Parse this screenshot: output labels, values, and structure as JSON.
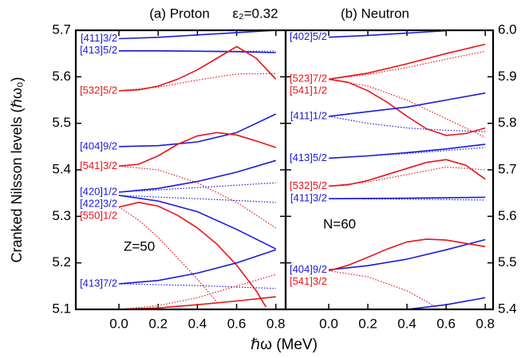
{
  "figure": {
    "note": "ε₂=0.32",
    "xlabel": "ℏω (MeV)"
  },
  "chart_data": [
    {
      "type": "line",
      "title": "(a) Proton",
      "ylabel": "Cranked Nilsson levels (ℏω₀)",
      "annotation": "Z=50",
      "xlim": [
        -0.22,
        0.85
      ],
      "ylim": [
        5.1,
        5.7
      ],
      "xticks": [
        {
          "value": 0,
          "label": "0.0"
        },
        0.2,
        0.4,
        0.6,
        0.8
      ],
      "yticks": [
        5.1,
        5.2,
        5.3,
        5.4,
        5.5,
        5.6,
        5.7
      ],
      "series": [
        {
          "name": "[411]3/2",
          "color": "#1a1adb",
          "dash": "solid",
          "x": [
            0,
            0.2,
            0.4,
            0.6,
            0.8
          ],
          "values": [
            5.682,
            5.685,
            5.69,
            5.695,
            5.7
          ]
        },
        {
          "name": "[413]5/2",
          "color": "#1a1adb",
          "dash": "solid",
          "x": [
            0,
            0.2,
            0.4,
            0.6,
            0.8
          ],
          "values": [
            5.656,
            5.656,
            5.655,
            5.654,
            5.652
          ]
        },
        {
          "color": "#1a1adb",
          "dash": "dotted",
          "x": [
            0,
            0.4,
            0.8
          ],
          "values": [
            5.655,
            5.655,
            5.655
          ]
        },
        {
          "name": "[532]5/2",
          "color": "#e8131a",
          "dash": "solid",
          "x": [
            0,
            0.1,
            0.2,
            0.3,
            0.4,
            0.5,
            0.6,
            0.7,
            0.8
          ],
          "values": [
            5.57,
            5.572,
            5.58,
            5.595,
            5.615,
            5.64,
            5.665,
            5.64,
            5.595
          ]
        },
        {
          "color": "#e8131a",
          "dash": "dotted",
          "x": [
            0,
            0.2,
            0.4,
            0.6,
            0.8
          ],
          "values": [
            5.57,
            5.578,
            5.593,
            5.606,
            5.607
          ]
        },
        {
          "name": "[404]9/2",
          "color": "#1a1adb",
          "dash": "solid",
          "x": [
            0,
            0.2,
            0.4,
            0.6,
            0.8
          ],
          "values": [
            5.45,
            5.452,
            5.46,
            5.48,
            5.52
          ]
        },
        {
          "name": "[541]3/2",
          "color": "#e8131a",
          "dash": "solid",
          "x": [
            0,
            0.1,
            0.2,
            0.3,
            0.4,
            0.5,
            0.6,
            0.7,
            0.8
          ],
          "values": [
            5.408,
            5.412,
            5.43,
            5.455,
            5.473,
            5.48,
            5.475,
            5.462,
            5.448
          ]
        },
        {
          "color": "#e8131a",
          "dash": "dotted",
          "x": [
            0,
            0.2,
            0.4,
            0.6,
            0.8
          ],
          "values": [
            5.408,
            5.4,
            5.372,
            5.33,
            5.275
          ]
        },
        {
          "name": "[420]1/2",
          "color": "#1a1adb",
          "dash": "solid",
          "x": [
            0,
            0.2,
            0.4,
            0.6,
            0.8
          ],
          "values": [
            5.352,
            5.36,
            5.375,
            5.395,
            5.42
          ]
        },
        {
          "color": "#1a1adb",
          "dash": "dotted",
          "x": [
            0,
            0.4,
            0.8
          ],
          "values": [
            5.352,
            5.362,
            5.372
          ]
        },
        {
          "name": "[422]3/2",
          "color": "#1a1adb",
          "dash": "solid",
          "x": [
            0,
            0.2,
            0.4,
            0.6,
            0.8
          ],
          "values": [
            5.345,
            5.333,
            5.31,
            5.272,
            5.23
          ]
        },
        {
          "color": "#1a1adb",
          "dash": "dotted",
          "x": [
            0,
            0.4,
            0.8
          ],
          "values": [
            5.345,
            5.338,
            5.33
          ]
        },
        {
          "name": "[550]1/2",
          "color": "#e8131a",
          "dash": "solid",
          "x": [
            0,
            0.1,
            0.2,
            0.3,
            0.4,
            0.5,
            0.6,
            0.7,
            0.75
          ],
          "values": [
            5.32,
            5.33,
            5.322,
            5.302,
            5.275,
            5.24,
            5.195,
            5.14,
            5.105
          ]
        },
        {
          "color": "#e8131a",
          "dash": "dotted",
          "x": [
            0,
            0.1,
            0.2,
            0.3,
            0.4,
            0.5
          ],
          "values": [
            5.32,
            5.292,
            5.255,
            5.21,
            5.165,
            5.115
          ]
        },
        {
          "name": "[413]7/2",
          "color": "#1a1adb",
          "dash": "solid",
          "x": [
            0,
            0.2,
            0.4,
            0.6,
            0.8
          ],
          "values": [
            5.155,
            5.162,
            5.178,
            5.2,
            5.228
          ]
        },
        {
          "color": "#1a1adb",
          "dash": "dotted",
          "x": [
            0,
            0.4,
            0.8
          ],
          "values": [
            5.155,
            5.151,
            5.145
          ]
        },
        {
          "color": "#e8131a",
          "dash": "solid",
          "x": [
            0,
            0.2,
            0.4,
            0.6,
            0.8
          ],
          "values": [
            5.1,
            5.103,
            5.11,
            5.118,
            5.127
          ]
        },
        {
          "color": "#e8131a",
          "dash": "dotted",
          "x": [
            0,
            0.2,
            0.4,
            0.6,
            0.8
          ],
          "values": [
            5.1,
            5.108,
            5.125,
            5.15,
            5.175
          ]
        }
      ]
    },
    {
      "type": "line",
      "title": "(b) Neutron",
      "annotation": "N=60",
      "xlim": [
        -0.22,
        0.84
      ],
      "ylim": [
        5.4,
        6.0
      ],
      "xticks": [
        {
          "value": 0,
          "label": "0.0"
        },
        0.2,
        0.4,
        0.6,
        0.8
      ],
      "yticks": [
        5.4,
        5.5,
        5.6,
        5.7,
        5.8,
        5.9,
        {
          "value": 6,
          "label": "6.0"
        }
      ],
      "series": [
        {
          "name": "[402]5/2",
          "color": "#1a1adb",
          "dash": "solid",
          "x": [
            0,
            0.2,
            0.4,
            0.6
          ],
          "values": [
            5.985,
            5.989,
            5.994,
            5.999
          ]
        },
        {
          "name": "[523]7/2",
          "color": "#e8131a",
          "dash": "solid",
          "x": [
            0,
            0.2,
            0.4,
            0.6,
            0.8
          ],
          "values": [
            5.895,
            5.908,
            5.928,
            5.95,
            5.97
          ]
        },
        {
          "color": "#e8131a",
          "dash": "dotted",
          "x": [
            0,
            0.2,
            0.4,
            0.6,
            0.8
          ],
          "values": [
            5.895,
            5.905,
            5.92,
            5.938,
            5.955
          ]
        },
        {
          "name": "[541]1/2",
          "color": "#e8131a",
          "dash": "solid",
          "x": [
            0,
            0.1,
            0.2,
            0.3,
            0.4,
            0.5,
            0.6,
            0.7,
            0.8
          ],
          "values": [
            5.895,
            5.888,
            5.87,
            5.845,
            5.815,
            5.788,
            5.774,
            5.778,
            5.79
          ]
        },
        {
          "color": "#e8131a",
          "dash": "dotted",
          "x": [
            0,
            0.2,
            0.4,
            0.6,
            0.8
          ],
          "values": [
            5.895,
            5.88,
            5.85,
            5.81,
            5.77
          ]
        },
        {
          "name": "[411]1/2",
          "color": "#1a1adb",
          "dash": "solid",
          "x": [
            0,
            0.2,
            0.4,
            0.6,
            0.8
          ],
          "values": [
            5.815,
            5.825,
            5.835,
            5.85,
            5.865
          ]
        },
        {
          "color": "#1a1adb",
          "dash": "dotted",
          "x": [
            0,
            0.2,
            0.4,
            0.6,
            0.8
          ],
          "values": [
            5.815,
            5.8,
            5.79,
            5.785,
            5.782
          ]
        },
        {
          "name": "[413]5/2",
          "color": "#1a1adb",
          "dash": "solid",
          "x": [
            0,
            0.2,
            0.4,
            0.6,
            0.8
          ],
          "values": [
            5.725,
            5.73,
            5.737,
            5.745,
            5.755
          ]
        },
        {
          "color": "#1a1adb",
          "dash": "dotted",
          "x": [
            0,
            0.4,
            0.8
          ],
          "values": [
            5.725,
            5.735,
            5.748
          ]
        },
        {
          "name": "[532]5/2",
          "color": "#e8131a",
          "dash": "solid",
          "x": [
            0,
            0.1,
            0.2,
            0.3,
            0.4,
            0.5,
            0.6,
            0.7,
            0.8
          ],
          "values": [
            5.665,
            5.668,
            5.677,
            5.69,
            5.703,
            5.716,
            5.722,
            5.71,
            5.68
          ]
        },
        {
          "color": "#e8131a",
          "dash": "dotted",
          "x": [
            0,
            0.2,
            0.4,
            0.6,
            0.8
          ],
          "values": [
            5.665,
            5.674,
            5.69,
            5.706,
            5.7
          ]
        },
        {
          "name": "[411]3/2",
          "color": "#1a1adb",
          "dash": "solid",
          "x": [
            0,
            0.4,
            0.8
          ],
          "values": [
            5.638,
            5.639,
            5.641
          ]
        },
        {
          "color": "#1a1adb",
          "dash": "dotted",
          "x": [
            0,
            0.4,
            0.8
          ],
          "values": [
            5.638,
            5.637,
            5.635
          ]
        },
        {
          "name": "[404]9/2",
          "color": "#1a1adb",
          "dash": "solid",
          "x": [
            0,
            0.2,
            0.4,
            0.6,
            0.8
          ],
          "values": [
            5.485,
            5.494,
            5.508,
            5.528,
            5.55
          ]
        },
        {
          "name": "[541]3/2",
          "color": "#e8131a",
          "dash": "solid",
          "x": [
            0,
            0.1,
            0.2,
            0.3,
            0.4,
            0.5,
            0.6,
            0.7,
            0.8
          ],
          "values": [
            5.483,
            5.495,
            5.512,
            5.53,
            5.545,
            5.551,
            5.549,
            5.542,
            5.535
          ]
        },
        {
          "color": "#e8131a",
          "dash": "dotted",
          "x": [
            0,
            0.2,
            0.4,
            0.55
          ],
          "values": [
            5.483,
            5.47,
            5.44,
            5.405
          ]
        },
        {
          "color": "#1a1adb",
          "dash": "solid",
          "x": [
            0.4,
            0.6,
            0.8
          ],
          "values": [
            5.4,
            5.41,
            5.425
          ]
        }
      ]
    }
  ]
}
